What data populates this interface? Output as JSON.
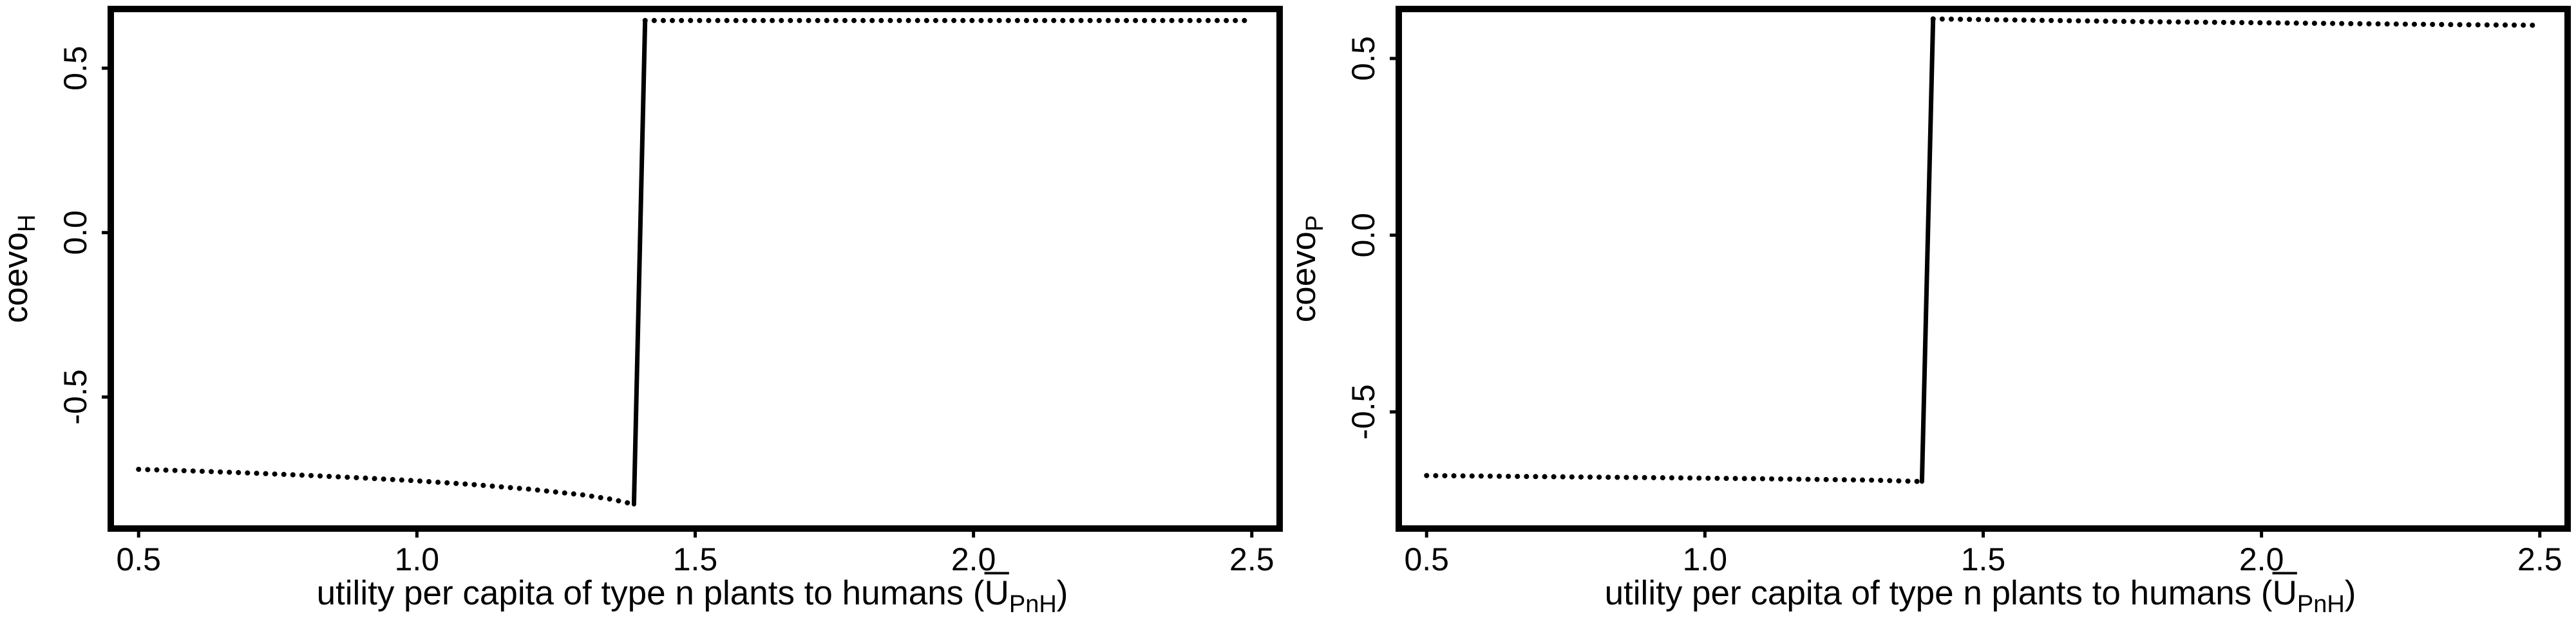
{
  "panels": [
    {
      "ylabel_main": "coevo",
      "ylabel_sub": "H",
      "xlabel": {
        "prefix": "utility per capita of type n plants to humans (",
        "symbol": "U",
        "subscript": "PnH",
        "suffix": ")"
      }
    },
    {
      "ylabel_main": "coevo",
      "ylabel_sub": "P",
      "xlabel": {
        "prefix": "utility per capita of type n plants to humans (",
        "symbol": "U",
        "subscript": "PnH",
        "suffix": ")"
      }
    }
  ],
  "chart_data": [
    {
      "type": "scatter",
      "title": "",
      "xlabel": "utility per capita of type n plants to humans (ŪPnH)",
      "ylabel": "coevoH",
      "xlim": [
        0.45,
        2.55
      ],
      "ylim": [
        -0.9,
        0.68
      ],
      "xticks": [
        "0.5",
        "1.0",
        "1.5",
        "2.0",
        "2.5"
      ],
      "yticks": [
        "-0.5",
        "0.0",
        "0.5"
      ],
      "grid": false,
      "color": "#000000",
      "series": [
        {
          "style": "dotted",
          "x": [
            0.5,
            0.6,
            0.7,
            0.8,
            0.9,
            1.0,
            1.1,
            1.2,
            1.3,
            1.35,
            1.39
          ],
          "y": [
            -0.72,
            -0.725,
            -0.731,
            -0.738,
            -0.746,
            -0.755,
            -0.766,
            -0.78,
            -0.798,
            -0.811,
            -0.826
          ]
        },
        {
          "style": "solid",
          "x": [
            1.39,
            1.41
          ],
          "y": [
            -0.826,
            0.645
          ]
        },
        {
          "style": "dotted",
          "x": [
            1.41,
            1.6,
            1.8,
            2.0,
            2.2,
            2.4,
            2.5
          ],
          "y": [
            0.645,
            0.645,
            0.645,
            0.645,
            0.645,
            0.645,
            0.645
          ]
        }
      ]
    },
    {
      "type": "scatter",
      "title": "",
      "xlabel": "utility per capita of type n plants to humans (ŪPnH)",
      "ylabel": "coevoP",
      "xlim": [
        0.45,
        2.55
      ],
      "ylim": [
        -0.83,
        0.64
      ],
      "xticks": [
        "0.5",
        "1.0",
        "1.5",
        "2.0",
        "2.5"
      ],
      "yticks": [
        "-0.5",
        "0.0",
        "0.5"
      ],
      "grid": false,
      "color": "#000000",
      "series": [
        {
          "style": "dotted",
          "x": [
            0.5,
            0.7,
            0.9,
            1.1,
            1.3,
            1.39
          ],
          "y": [
            -0.68,
            -0.683,
            -0.686,
            -0.689,
            -0.693,
            -0.697
          ]
        },
        {
          "style": "solid",
          "x": [
            1.39,
            1.41
          ],
          "y": [
            -0.697,
            0.612
          ]
        },
        {
          "style": "dotted",
          "x": [
            1.41,
            1.6,
            1.8,
            2.0,
            2.2,
            2.4,
            2.5
          ],
          "y": [
            0.612,
            0.608,
            0.604,
            0.601,
            0.598,
            0.595,
            0.594
          ]
        }
      ]
    }
  ]
}
